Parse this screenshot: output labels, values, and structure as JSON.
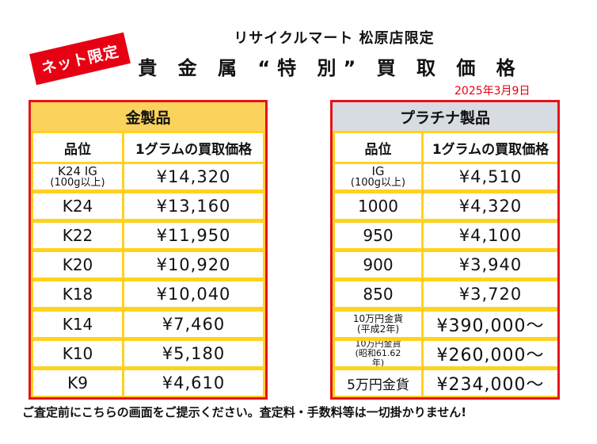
{
  "badge": "ネット限定",
  "store_line": "リサイクルマート 松原店限定",
  "title": "貴 金 属 “特 別” 買 取 価 格",
  "date": "2025年3月9日",
  "gold_table": {
    "header": "金製品",
    "col_grade": "品位",
    "col_price": "1グラムの買取価格",
    "rows": [
      {
        "grade_line1": "K24 IG",
        "grade_line2": "(100g以上)",
        "price": "¥14,320"
      },
      {
        "grade": "K24",
        "price": "¥13,160"
      },
      {
        "grade": "K22",
        "price": "¥11,950"
      },
      {
        "grade": "K20",
        "price": "¥10,920"
      },
      {
        "grade": "K18",
        "price": "¥10,040"
      },
      {
        "grade": "K14",
        "price": "¥7,460"
      },
      {
        "grade": "K10",
        "price": "¥5,180"
      },
      {
        "grade": "K9",
        "price": "¥4,610"
      }
    ]
  },
  "platinum_table": {
    "header": "プラチナ製品",
    "col_grade": "品位",
    "col_price": "1グラムの買取価格",
    "rows": [
      {
        "grade_line1": "IG",
        "grade_line2": "(100g以上)",
        "price": "¥4,510"
      },
      {
        "grade": "1000",
        "price": "¥4,320"
      },
      {
        "grade": "950",
        "price": "¥4,100"
      },
      {
        "grade": "900",
        "price": "¥3,940"
      },
      {
        "grade": "850",
        "price": "¥3,720"
      },
      {
        "grade_line1": "10万円金貨",
        "grade_line2": "(平成2年)",
        "price": "¥390,000〜"
      },
      {
        "grade_line1": "10万円金貨",
        "grade_line2": "(昭和61.62",
        "grade_line3": "年)",
        "price": "¥260,000〜"
      },
      {
        "grade": "5万円金貨",
        "price": "¥234,000〜"
      }
    ]
  },
  "footer": "ご査定前にこちらの画面をご提示ください。査定料・手数料等は一切掛かりません!"
}
